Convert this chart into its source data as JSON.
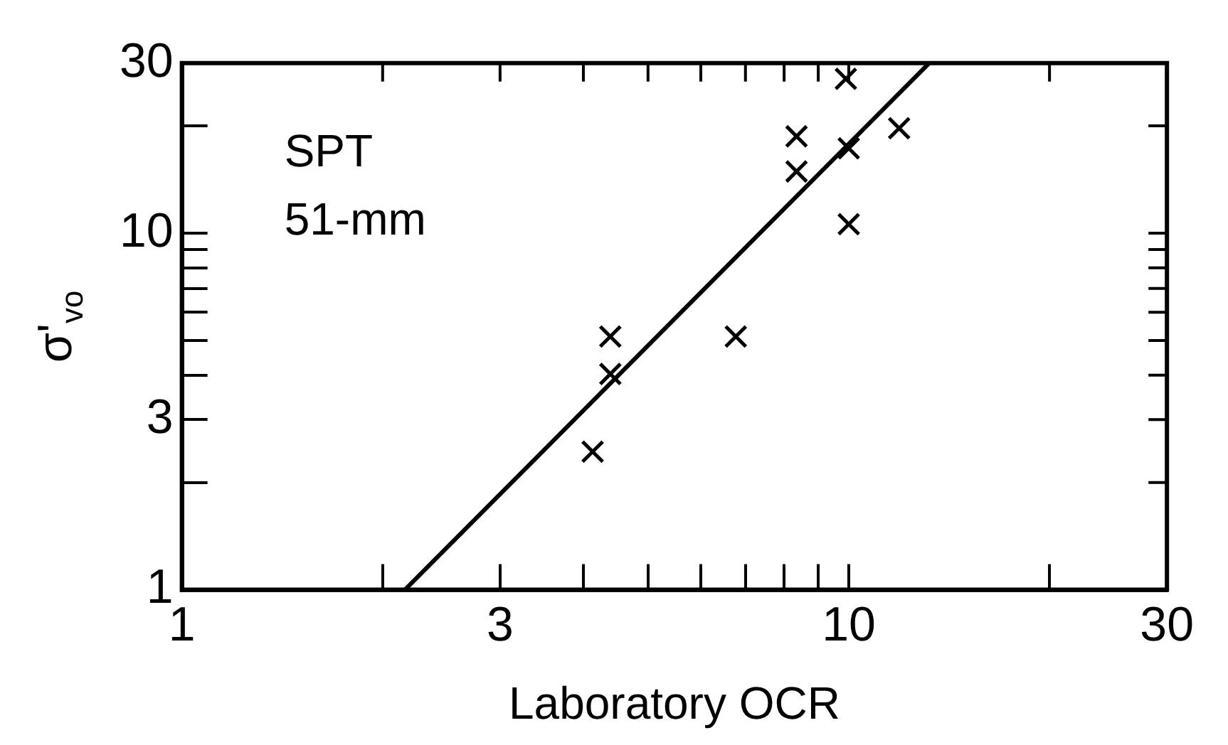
{
  "chart_data": {
    "type": "scatter",
    "xlabel": "Laboratory OCR",
    "ylabel": "σ'$_{vo}$",
    "log": "xy",
    "xlim": [
      1,
      30
    ],
    "ylim": [
      1,
      30
    ],
    "xticks": [
      1,
      {
        "value": 2,
        "label": null
      },
      3,
      {
        "value": 4,
        "label": null
      },
      {
        "value": 5,
        "label": null
      },
      {
        "value": 6,
        "label": null
      },
      {
        "value": 7,
        "label": null
      },
      {
        "value": 8,
        "label": null
      },
      {
        "value": 9,
        "label": null
      },
      10,
      {
        "value": 20,
        "label": null
      },
      30
    ],
    "yticks": [
      1,
      {
        "value": 2,
        "label": null
      },
      3,
      {
        "value": 4,
        "label": null
      },
      {
        "value": 5,
        "label": null
      },
      {
        "value": 6,
        "label": null
      },
      {
        "value": 7,
        "label": null
      },
      {
        "value": 8,
        "label": null
      },
      {
        "value": 9,
        "label": null
      },
      10,
      {
        "value": 20,
        "label": null
      },
      30
    ],
    "grid": false,
    "legend": false,
    "annotations": [
      "SPT",
      "51-mm"
    ],
    "series": [
      {
        "type": "scatter",
        "marker": "cross",
        "color": "#000000",
        "x": [
          9.9,
          8.35,
          8.35,
          10,
          11.9,
          10,
          4.39,
          4.39,
          6.77,
          4.13
        ],
        "values": [
          27.1,
          18.7,
          14.9,
          17.3,
          19.7,
          10.6,
          5.13,
          4.03,
          5.13,
          2.44
        ]
      },
      {
        "type": "line",
        "marker": "none",
        "color": "#000000",
        "x": [
          2.16,
          13.2
        ],
        "values": [
          1,
          30
        ]
      }
    ]
  }
}
